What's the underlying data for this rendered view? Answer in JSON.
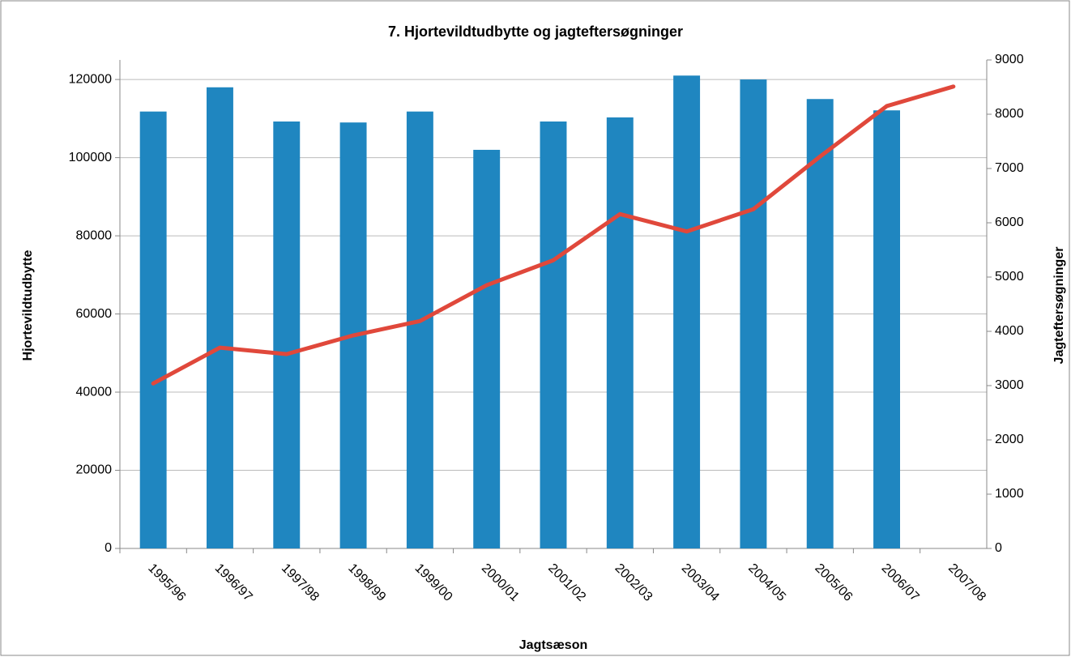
{
  "chart_data": {
    "type": "bar_line",
    "title": "7. Hjortevildtudbytte og jagteftersøgninger",
    "xlabel": "Jagtsæson",
    "ylabel": "Hjortevildtudbytte",
    "y2label": "Jagteftersøgninger",
    "categories": [
      "1995/96",
      "1996/97",
      "1997/98",
      "1998/99",
      "1999/00",
      "2000/01",
      "2001/02",
      "2002/03",
      "2003/04",
      "2004/05",
      "2005/06",
      "2006/07",
      "2007/08"
    ],
    "series": [
      {
        "type": "bar",
        "color": "#1f86c0",
        "values": [
          111800,
          118000,
          109250,
          109000,
          111800,
          102000,
          109250,
          110300,
          121000,
          120000,
          115000,
          112100,
          null
        ]
      },
      {
        "type": "line",
        "axis": "y2",
        "color": "#e0483b",
        "values": [
          3040,
          3700,
          3580,
          3925,
          4190,
          4850,
          5310,
          6160,
          5840,
          6250,
          7220,
          8150,
          8510
        ]
      }
    ],
    "ylim": [
      0,
      125000
    ],
    "yticks": [
      0,
      20000,
      40000,
      60000,
      80000,
      100000,
      120000
    ],
    "y2lim": [
      0,
      9000
    ],
    "y2ticks": [
      0,
      1000,
      2000,
      3000,
      4000,
      5000,
      6000,
      7000,
      8000,
      9000
    ],
    "grid": true
  }
}
